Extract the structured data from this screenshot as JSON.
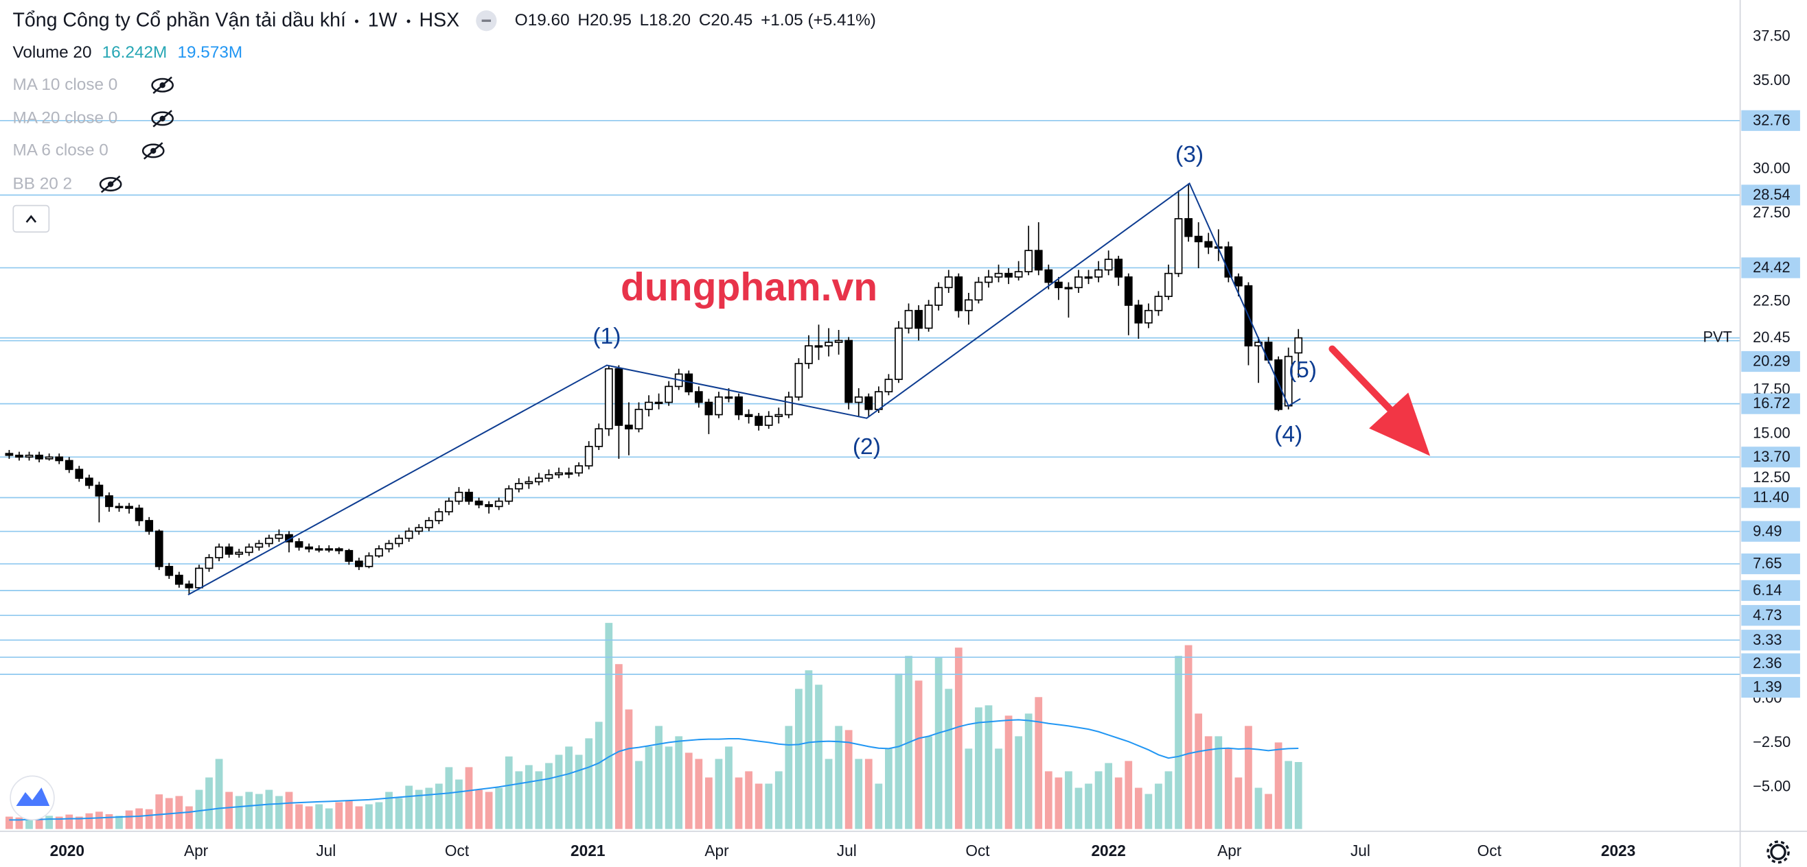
{
  "header": {
    "name": "Tổng Công ty Cổ phần Vận tải dầu khí",
    "interval": "1W",
    "exchange": "HSX",
    "open": "O19.60",
    "high": "H20.95",
    "low": "L18.20",
    "close": "C20.45",
    "change": "+1.05 (+5.41%)"
  },
  "indicators": {
    "volume": {
      "name": "Volume 20",
      "value": "16.242M",
      "ma": "19.573M"
    },
    "hidden": [
      "MA 10 close 0",
      "MA 20 close 0",
      "MA 6 close 0",
      "BB 20 2"
    ]
  },
  "watermark": "dungpham.vn",
  "chart_data": {
    "type": "candlestick",
    "open": [
      13.9,
      13.8,
      13.7,
      13.8,
      13.6,
      13.7,
      13.5,
      13.0,
      12.5,
      12.1,
      11.5,
      10.9,
      10.9,
      10.8,
      10.1,
      9.5,
      7.5,
      7.0,
      6.5,
      6.3,
      7.4,
      8.0,
      8.6,
      8.2,
      8.3,
      8.6,
      8.8,
      9.1,
      9.3,
      8.9,
      8.6,
      8.5,
      8.5,
      8.5,
      8.4,
      7.8,
      7.5,
      8.1,
      8.5,
      8.8,
      9.1,
      9.5,
      9.7,
      10.1,
      10.6,
      11.2,
      11.7,
      11.2,
      11.0,
      10.9,
      11.2,
      11.9,
      12.2,
      12.3,
      12.5,
      12.7,
      12.8,
      12.8,
      13.2,
      14.3,
      15.3,
      18.7,
      15.5,
      15.3,
      16.4,
      16.8,
      16.8,
      17.7,
      18.4,
      17.4,
      16.8,
      16.1,
      17.1,
      17.1,
      16.1,
      16.0,
      15.5,
      16.0,
      16.1,
      17.1,
      19.0,
      20.0,
      20.0,
      20.2,
      20.3,
      16.8,
      17.1,
      16.4,
      17.4,
      18.1,
      21.0,
      22.0,
      21.0,
      22.3,
      23.3,
      23.9,
      22.0,
      22.6,
      23.6,
      23.9,
      24.1,
      23.9,
      24.2,
      25.4,
      24.3,
      23.6,
      23.3,
      23.3,
      23.9,
      23.9,
      24.3,
      24.9,
      23.9,
      22.3,
      21.3,
      22.0,
      22.8,
      24.1,
      27.2,
      26.2,
      25.9,
      25.6,
      25.6,
      23.9,
      23.4,
      20.0,
      20.2,
      19.2,
      16.6,
      19.6
    ],
    "high": [
      14.1,
      14.0,
      14.0,
      14.0,
      13.9,
      13.9,
      13.7,
      13.2,
      12.7,
      12.3,
      11.7,
      11.1,
      11.1,
      11.0,
      10.3,
      9.6,
      7.7,
      7.2,
      6.7,
      7.6,
      8.2,
      8.8,
      8.8,
      8.5,
      8.8,
      9.0,
      9.3,
      9.6,
      9.5,
      9.1,
      8.8,
      8.7,
      8.7,
      8.6,
      8.5,
      8.0,
      8.3,
      8.7,
      9.0,
      9.3,
      9.7,
      9.9,
      10.3,
      10.8,
      11.4,
      12.0,
      11.9,
      11.4,
      11.2,
      11.4,
      12.1,
      12.5,
      12.6,
      12.8,
      13.0,
      13.1,
      13.1,
      13.4,
      14.6,
      15.6,
      18.9,
      18.9,
      16.8,
      16.8,
      17.2,
      17.3,
      18.0,
      18.7,
      18.6,
      17.7,
      17.0,
      17.4,
      17.6,
      17.3,
      16.4,
      16.2,
      16.3,
      16.5,
      17.4,
      19.3,
      20.6,
      21.2,
      21.0,
      20.9,
      20.5,
      17.6,
      17.3,
      17.7,
      18.4,
      21.4,
      22.4,
      22.3,
      22.6,
      23.6,
      24.3,
      24.1,
      23.0,
      23.9,
      24.3,
      24.6,
      24.4,
      24.8,
      26.8,
      27.0,
      24.6,
      23.9,
      23.6,
      24.3,
      24.3,
      24.8,
      25.4,
      25.1,
      24.1,
      22.6,
      22.4,
      23.1,
      24.6,
      28.8,
      29.2,
      27.0,
      26.4,
      26.6,
      25.9,
      24.1,
      23.6,
      20.5,
      20.5,
      19.4,
      19.9,
      20.95
    ],
    "low": [
      13.6,
      13.5,
      13.5,
      13.4,
      13.5,
      13.3,
      12.8,
      12.3,
      11.9,
      10.0,
      10.6,
      10.6,
      10.5,
      9.8,
      9.3,
      7.3,
      6.8,
      6.3,
      5.9,
      6.2,
      7.2,
      7.8,
      8.0,
      8.0,
      8.1,
      8.4,
      8.6,
      8.9,
      8.3,
      8.4,
      8.3,
      8.3,
      8.3,
      8.2,
      7.6,
      7.3,
      7.4,
      8.0,
      8.3,
      8.6,
      8.9,
      9.3,
      9.5,
      9.9,
      10.4,
      11.0,
      11.0,
      10.8,
      10.5,
      10.7,
      11.0,
      11.7,
      11.9,
      12.1,
      12.3,
      12.5,
      12.5,
      12.6,
      13.0,
      14.1,
      14.9,
      13.6,
      13.8,
      15.1,
      16.0,
      16.4,
      16.6,
      17.5,
      17.2,
      16.5,
      15.0,
      15.9,
      16.8,
      15.8,
      15.6,
      15.2,
      15.3,
      15.6,
      15.9,
      16.9,
      18.7,
      19.2,
      19.4,
      19.5,
      16.4,
      16.0,
      16.0,
      16.2,
      17.2,
      17.9,
      20.7,
      20.3,
      20.8,
      22.0,
      23.0,
      21.6,
      21.2,
      22.4,
      23.3,
      23.6,
      23.5,
      23.7,
      24.0,
      24.0,
      23.2,
      22.6,
      21.6,
      23.0,
      23.5,
      23.6,
      24.0,
      23.4,
      20.6,
      20.4,
      21.0,
      21.7,
      22.6,
      23.9,
      25.9,
      24.4,
      25.2,
      24.8,
      23.6,
      22.8,
      18.9,
      17.9,
      19.0,
      16.3,
      16.4,
      18.2
    ],
    "close": [
      13.8,
      13.7,
      13.8,
      13.6,
      13.7,
      13.5,
      13.0,
      12.5,
      12.1,
      11.5,
      10.9,
      10.9,
      10.8,
      10.1,
      9.5,
      7.5,
      7.0,
      6.5,
      6.3,
      7.4,
      8.0,
      8.6,
      8.2,
      8.3,
      8.6,
      8.8,
      9.1,
      9.3,
      8.9,
      8.6,
      8.5,
      8.5,
      8.5,
      8.4,
      7.8,
      7.5,
      8.1,
      8.5,
      8.8,
      9.1,
      9.5,
      9.7,
      10.1,
      10.6,
      11.2,
      11.7,
      11.2,
      11.0,
      10.9,
      11.2,
      11.9,
      12.2,
      12.3,
      12.5,
      12.7,
      12.8,
      12.8,
      13.2,
      14.3,
      15.3,
      18.7,
      15.5,
      15.3,
      16.4,
      16.8,
      16.8,
      17.7,
      18.4,
      17.4,
      16.8,
      16.1,
      17.1,
      17.1,
      16.1,
      16.0,
      15.5,
      16.0,
      16.1,
      17.1,
      19.0,
      20.0,
      20.0,
      20.2,
      20.3,
      16.8,
      17.1,
      16.4,
      17.4,
      18.1,
      21.0,
      22.0,
      21.0,
      22.3,
      23.3,
      23.9,
      22.0,
      22.6,
      23.6,
      23.9,
      24.1,
      23.9,
      24.2,
      25.4,
      24.3,
      23.6,
      23.3,
      23.3,
      23.9,
      23.9,
      24.3,
      24.9,
      23.9,
      22.3,
      21.3,
      22.0,
      22.8,
      24.1,
      27.2,
      26.2,
      25.9,
      25.6,
      25.6,
      23.9,
      23.4,
      20.0,
      20.2,
      19.2,
      16.4,
      19.4,
      20.45
    ],
    "volume": [
      3.0,
      2.8,
      2.5,
      2.6,
      3.2,
      3.0,
      3.5,
      3.0,
      3.8,
      4.2,
      3.6,
      3.2,
      4.5,
      5.0,
      4.8,
      8.4,
      7.5,
      8.0,
      5.5,
      9.5,
      12.5,
      17.0,
      9.0,
      8.0,
      9.0,
      8.5,
      9.5,
      8.0,
      9.0,
      6.0,
      5.5,
      6.0,
      5.0,
      6.5,
      7.0,
      5.5,
      6.0,
      6.5,
      9.0,
      7.5,
      10.5,
      9.5,
      10.0,
      11.0,
      15.0,
      12.0,
      15.0,
      9.5,
      9.0,
      10.0,
      17.6,
      14.0,
      15.5,
      14.0,
      16.0,
      18.0,
      20.0,
      18.0,
      22.0,
      26.0,
      50.0,
      40.0,
      29.0,
      16.5,
      20.0,
      25.0,
      20.0,
      22.5,
      18.5,
      17.0,
      12.5,
      17.0,
      20.0,
      12.5,
      14.0,
      11.0,
      11.0,
      14.0,
      25.0,
      34.0,
      38.5,
      35.0,
      17.0,
      25.0,
      24.0,
      17.0,
      17.0,
      11.0,
      19.5,
      37.7,
      42.0,
      36.0,
      22.5,
      41.6,
      34.0,
      44.0,
      19.5,
      29.5,
      30.0,
      19.5,
      27.5,
      22.5,
      28.0,
      32.0,
      14.0,
      12.5,
      14.0,
      10.0,
      11.0,
      14.0,
      16.0,
      12.5,
      16.5,
      10.0,
      8.5,
      11.0,
      14.0,
      42.0,
      44.6,
      28.0,
      22.5,
      22.5,
      19.5,
      12.5,
      25.0,
      10.0,
      8.5,
      21.0,
      16.5,
      16.242
    ],
    "volume_ma": [
      2.2,
      2.2,
      2.3,
      2.3,
      2.4,
      2.4,
      2.5,
      2.5,
      2.6,
      2.7,
      2.8,
      2.9,
      3.0,
      3.1,
      3.3,
      3.5,
      3.7,
      3.9,
      4.1,
      4.4,
      4.7,
      5.0,
      5.2,
      5.4,
      5.6,
      5.8,
      6.0,
      6.1,
      6.3,
      6.4,
      6.5,
      6.6,
      6.7,
      6.8,
      6.9,
      7.0,
      7.1,
      7.3,
      7.5,
      7.7,
      7.9,
      8.1,
      8.3,
      8.5,
      8.7,
      9.0,
      9.3,
      9.6,
      9.9,
      10.2,
      10.6,
      11.0,
      11.4,
      11.8,
      12.2,
      12.8,
      13.4,
      14.2,
      15.0,
      16.0,
      17.5,
      18.8,
      19.5,
      19.8,
      20.2,
      20.6,
      21.0,
      21.3,
      21.5,
      21.7,
      21.8,
      21.8,
      21.9,
      21.9,
      21.6,
      21.3,
      21.0,
      20.6,
      20.4,
      20.5,
      21.0,
      21.2,
      21.3,
      21.2,
      21.0,
      20.5,
      20.0,
      19.6,
      19.5,
      20.0,
      21.0,
      22.0,
      22.5,
      23.3,
      24.0,
      24.8,
      25.4,
      25.8,
      26.0,
      26.2,
      26.4,
      26.5,
      26.3,
      26.0,
      25.6,
      25.3,
      25.0,
      24.6,
      24.2,
      23.6,
      22.8,
      22.0,
      21.2,
      20.2,
      19.2,
      18.0,
      17.2,
      17.6,
      18.3,
      18.8,
      19.2,
      19.5,
      19.6,
      19.4,
      19.5,
      19.3,
      19.0,
      19.3,
      19.5,
      19.573
    ],
    "up_color": "#ffffff",
    "down_color": "#000000",
    "volume_up_color": "#9fd9d4",
    "volume_down_color": "#f6a4a4",
    "ma_color": "#2196f3",
    "level_color": "#8ec8ef",
    "level_label_color": "#a9d3f5",
    "wave_color": "#0d3c91",
    "xlim": [
      -0.92,
      173.2
    ],
    "xticks": [
      {
        "value": 5.8,
        "label": "2020"
      },
      {
        "value": 18.7,
        "label": "Apr"
      },
      {
        "value": 31.7,
        "label": "Jul"
      },
      {
        "value": 44.8,
        "label": "Oct"
      },
      {
        "value": 57.9,
        "label": "2021"
      },
      {
        "value": 70.8,
        "label": "Apr"
      },
      {
        "value": 83.8,
        "label": "Jul"
      },
      {
        "value": 96.9,
        "label": "Oct"
      },
      {
        "value": 110.0,
        "label": "2022"
      },
      {
        "value": 122.1,
        "label": "Apr"
      },
      {
        "value": 135.2,
        "label": "Jul"
      },
      {
        "value": 148.1,
        "label": "Oct"
      },
      {
        "value": 161.0,
        "label": "2023"
      }
    ],
    "ylim": [
      -7.5,
      39.59
    ],
    "yticks": [
      {
        "value": 37.5,
        "label": "37.50"
      },
      {
        "value": 35,
        "label": "35.00"
      },
      {
        "value": 30,
        "label": "30.00"
      },
      {
        "value": 27.5,
        "label": "27.50"
      },
      {
        "value": 22.5,
        "label": "22.50"
      },
      {
        "value": 17.5,
        "label": "17.50"
      },
      {
        "value": 15,
        "label": "15.00"
      },
      {
        "value": 12.5,
        "label": "12.50"
      },
      {
        "value": 0,
        "label": "0.00"
      },
      {
        "value": -2.5,
        "label": "−2.50"
      },
      {
        "value": -5,
        "label": "−5.00"
      }
    ],
    "vlim": [
      0,
      100
    ],
    "levels": [
      32.76,
      28.54,
      24.42,
      20.29,
      16.72,
      {
        "value": 13.7,
        "label": "13.70"
      },
      {
        "value": 11.4,
        "label": "11.40"
      },
      9.49,
      7.65,
      6.14,
      4.73,
      3.33,
      2.36,
      1.39
    ],
    "last_price": 20.45,
    "symbol": "PVT",
    "waves": {
      "labels": [
        null,
        "(1)",
        "(2)",
        "(3)",
        "(4)",
        "(5)"
      ],
      "x": [
        17.9,
        59.8,
        85.8,
        118.1,
        128.0,
        129.2
      ],
      "y": [
        5.9,
        18.9,
        15.9,
        29.2,
        16.6,
        17.0
      ]
    }
  }
}
